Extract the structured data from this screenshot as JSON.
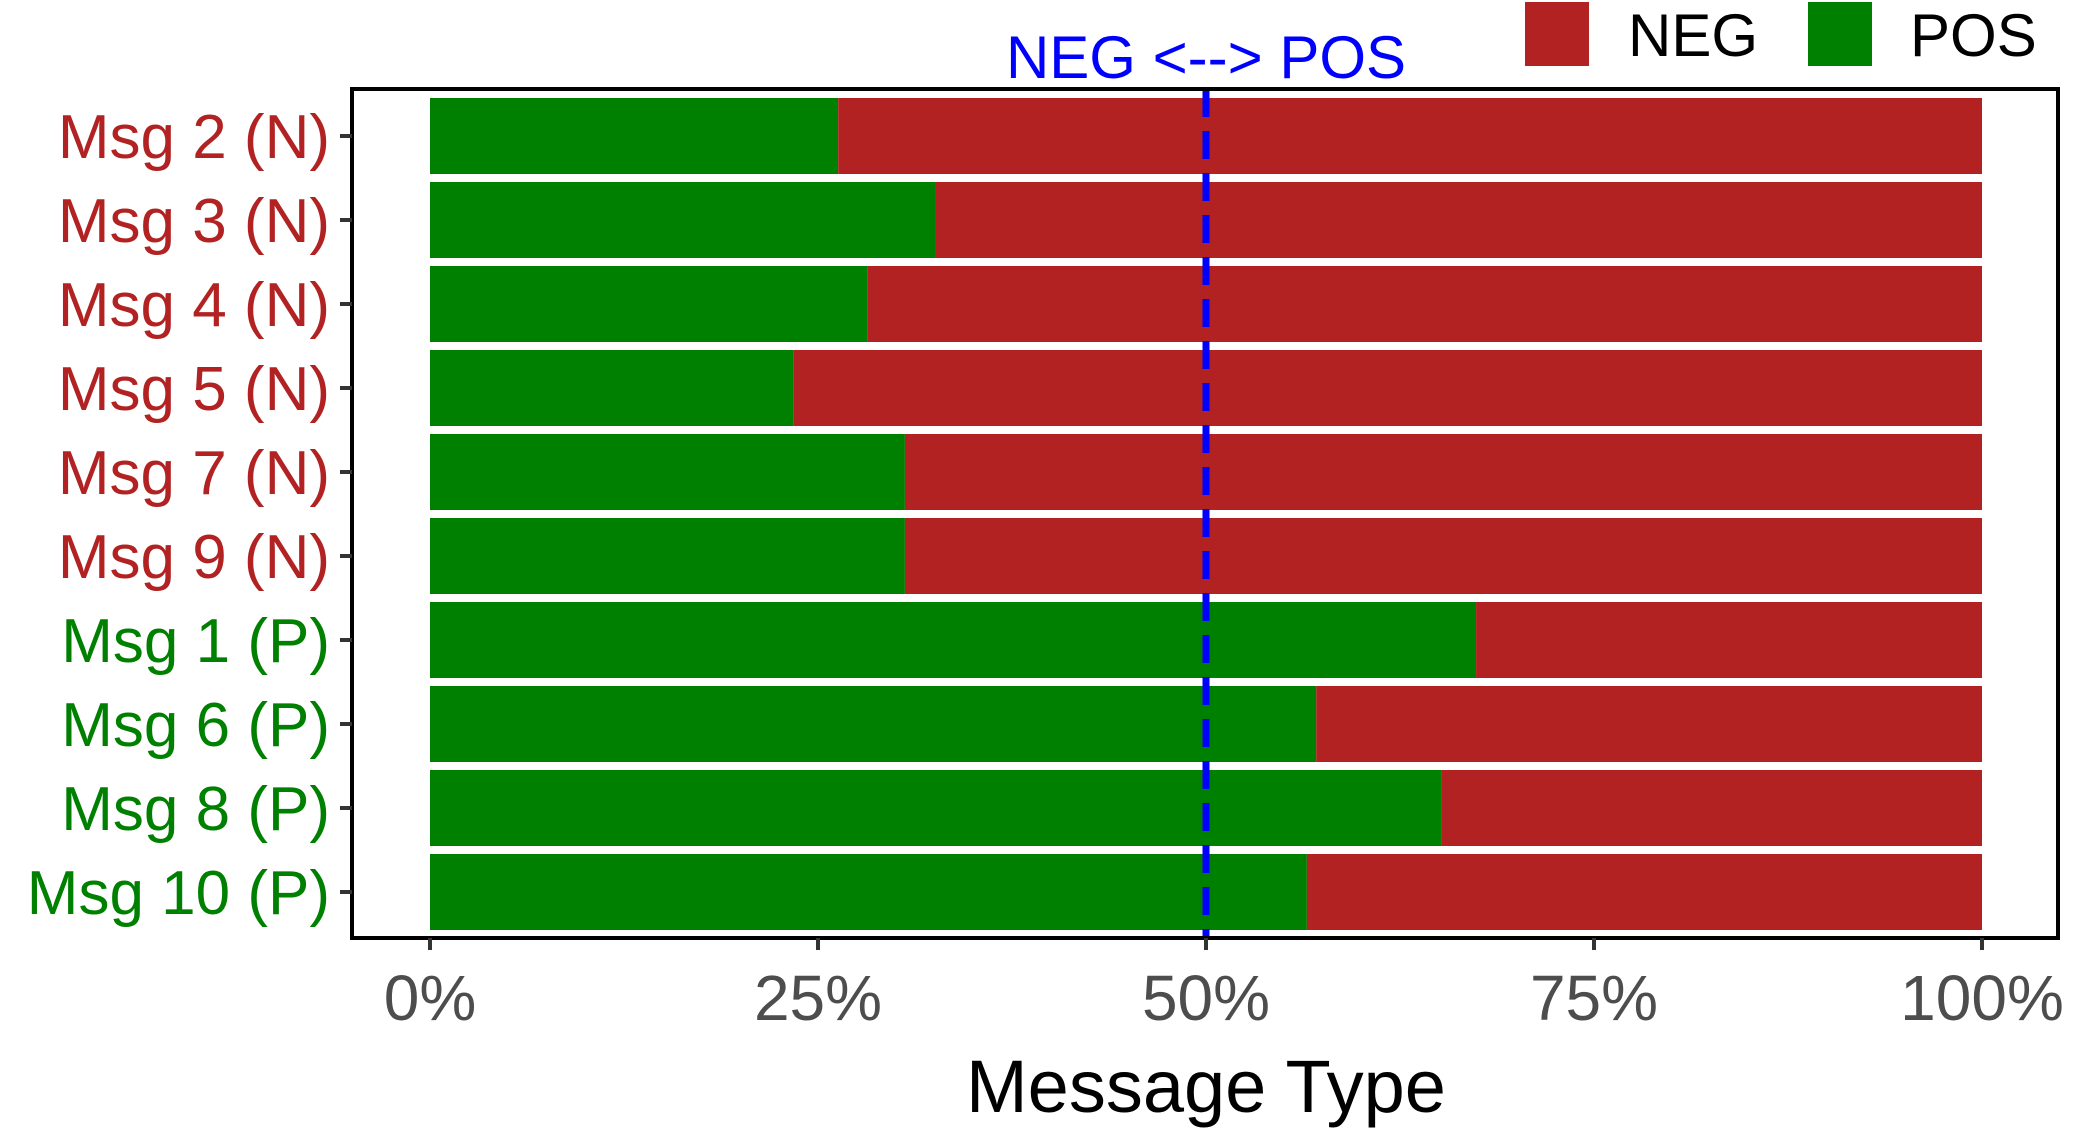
{
  "chart_data": {
    "type": "bar",
    "orientation": "horizontal",
    "stacked": true,
    "normalized": true,
    "categories": [
      "Msg 2 (N)",
      "Msg 3 (N)",
      "Msg 4 (N)",
      "Msg 5 (N)",
      "Msg 7 (N)",
      "Msg 9 (N)",
      "Msg 1 (P)",
      "Msg 6 (P)",
      "Msg 8 (P)",
      "Msg 10 (P)"
    ],
    "category_groups": [
      "N",
      "N",
      "N",
      "N",
      "N",
      "N",
      "P",
      "P",
      "P",
      "P"
    ],
    "series": [
      {
        "name": "POS",
        "color": "#008000",
        "values": [
          26.3,
          32.6,
          28.2,
          23.4,
          30.6,
          30.6,
          67.4,
          57.1,
          65.2,
          56.5
        ]
      },
      {
        "name": "NEG",
        "color": "#b22222",
        "values": [
          73.7,
          67.4,
          71.8,
          76.6,
          69.4,
          69.4,
          32.6,
          42.9,
          34.8,
          43.5
        ]
      }
    ],
    "xlabel": "Message Type",
    "ylabel": "",
    "xlim": [
      0,
      100
    ],
    "x_ticks": [
      "0%",
      "25%",
      "50%",
      "75%",
      "100%"
    ],
    "x_tick_values": [
      0,
      25,
      50,
      75,
      100
    ],
    "reference_line": {
      "value": 50,
      "label": "NEG <--> POS",
      "color": "#0000ff",
      "style": "dashed"
    },
    "legend": {
      "position": "top-right",
      "entries": [
        {
          "name": "NEG",
          "color": "#b22222"
        },
        {
          "name": "POS",
          "color": "#008000"
        }
      ]
    },
    "label_colors": {
      "N": "#b22222",
      "P": "#008000"
    },
    "grid": false
  }
}
